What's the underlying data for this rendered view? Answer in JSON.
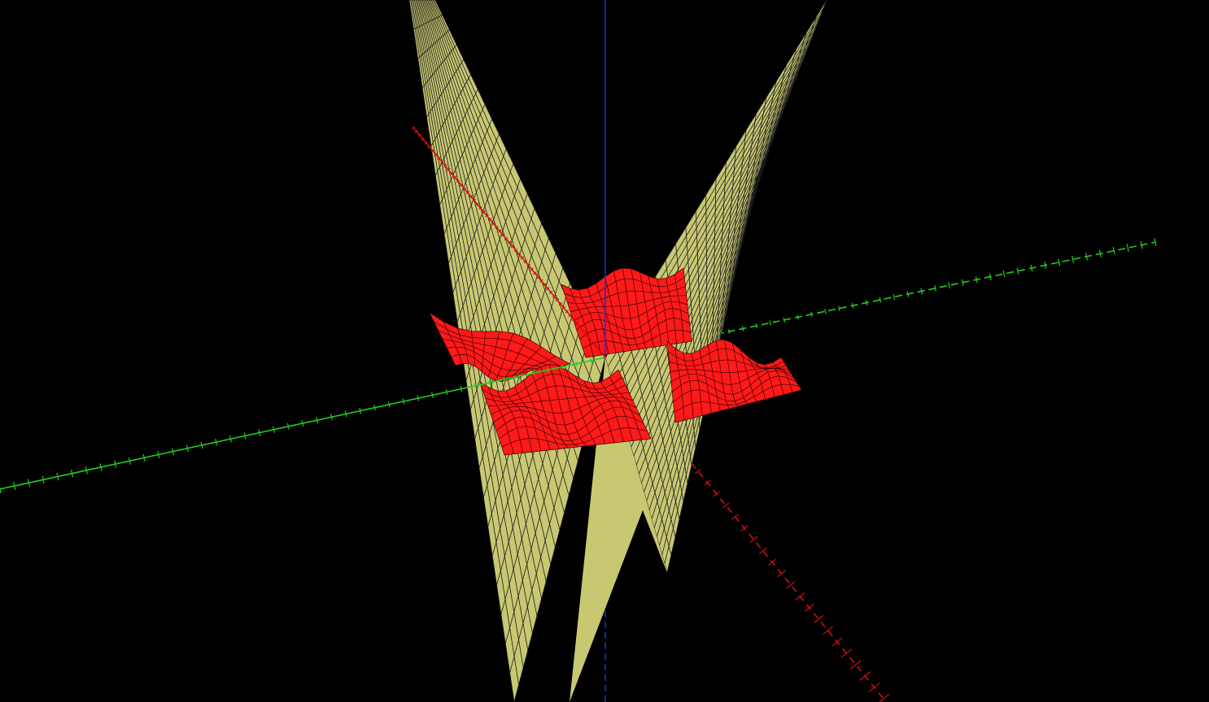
{
  "scene": {
    "background_color": "#000000",
    "axes": {
      "x": {
        "color": "#cc1111"
      },
      "y": {
        "color": "#22cc22"
      },
      "z": {
        "color": "#1133cc"
      }
    },
    "surfaces": [
      {
        "name": "saddle-surface",
        "fill": "#c8c873",
        "mesh_color": "#1a1a1a"
      },
      {
        "name": "wave-surface",
        "fill": "#ff1a1a",
        "mesh_color": "#3a0000"
      }
    ]
  }
}
